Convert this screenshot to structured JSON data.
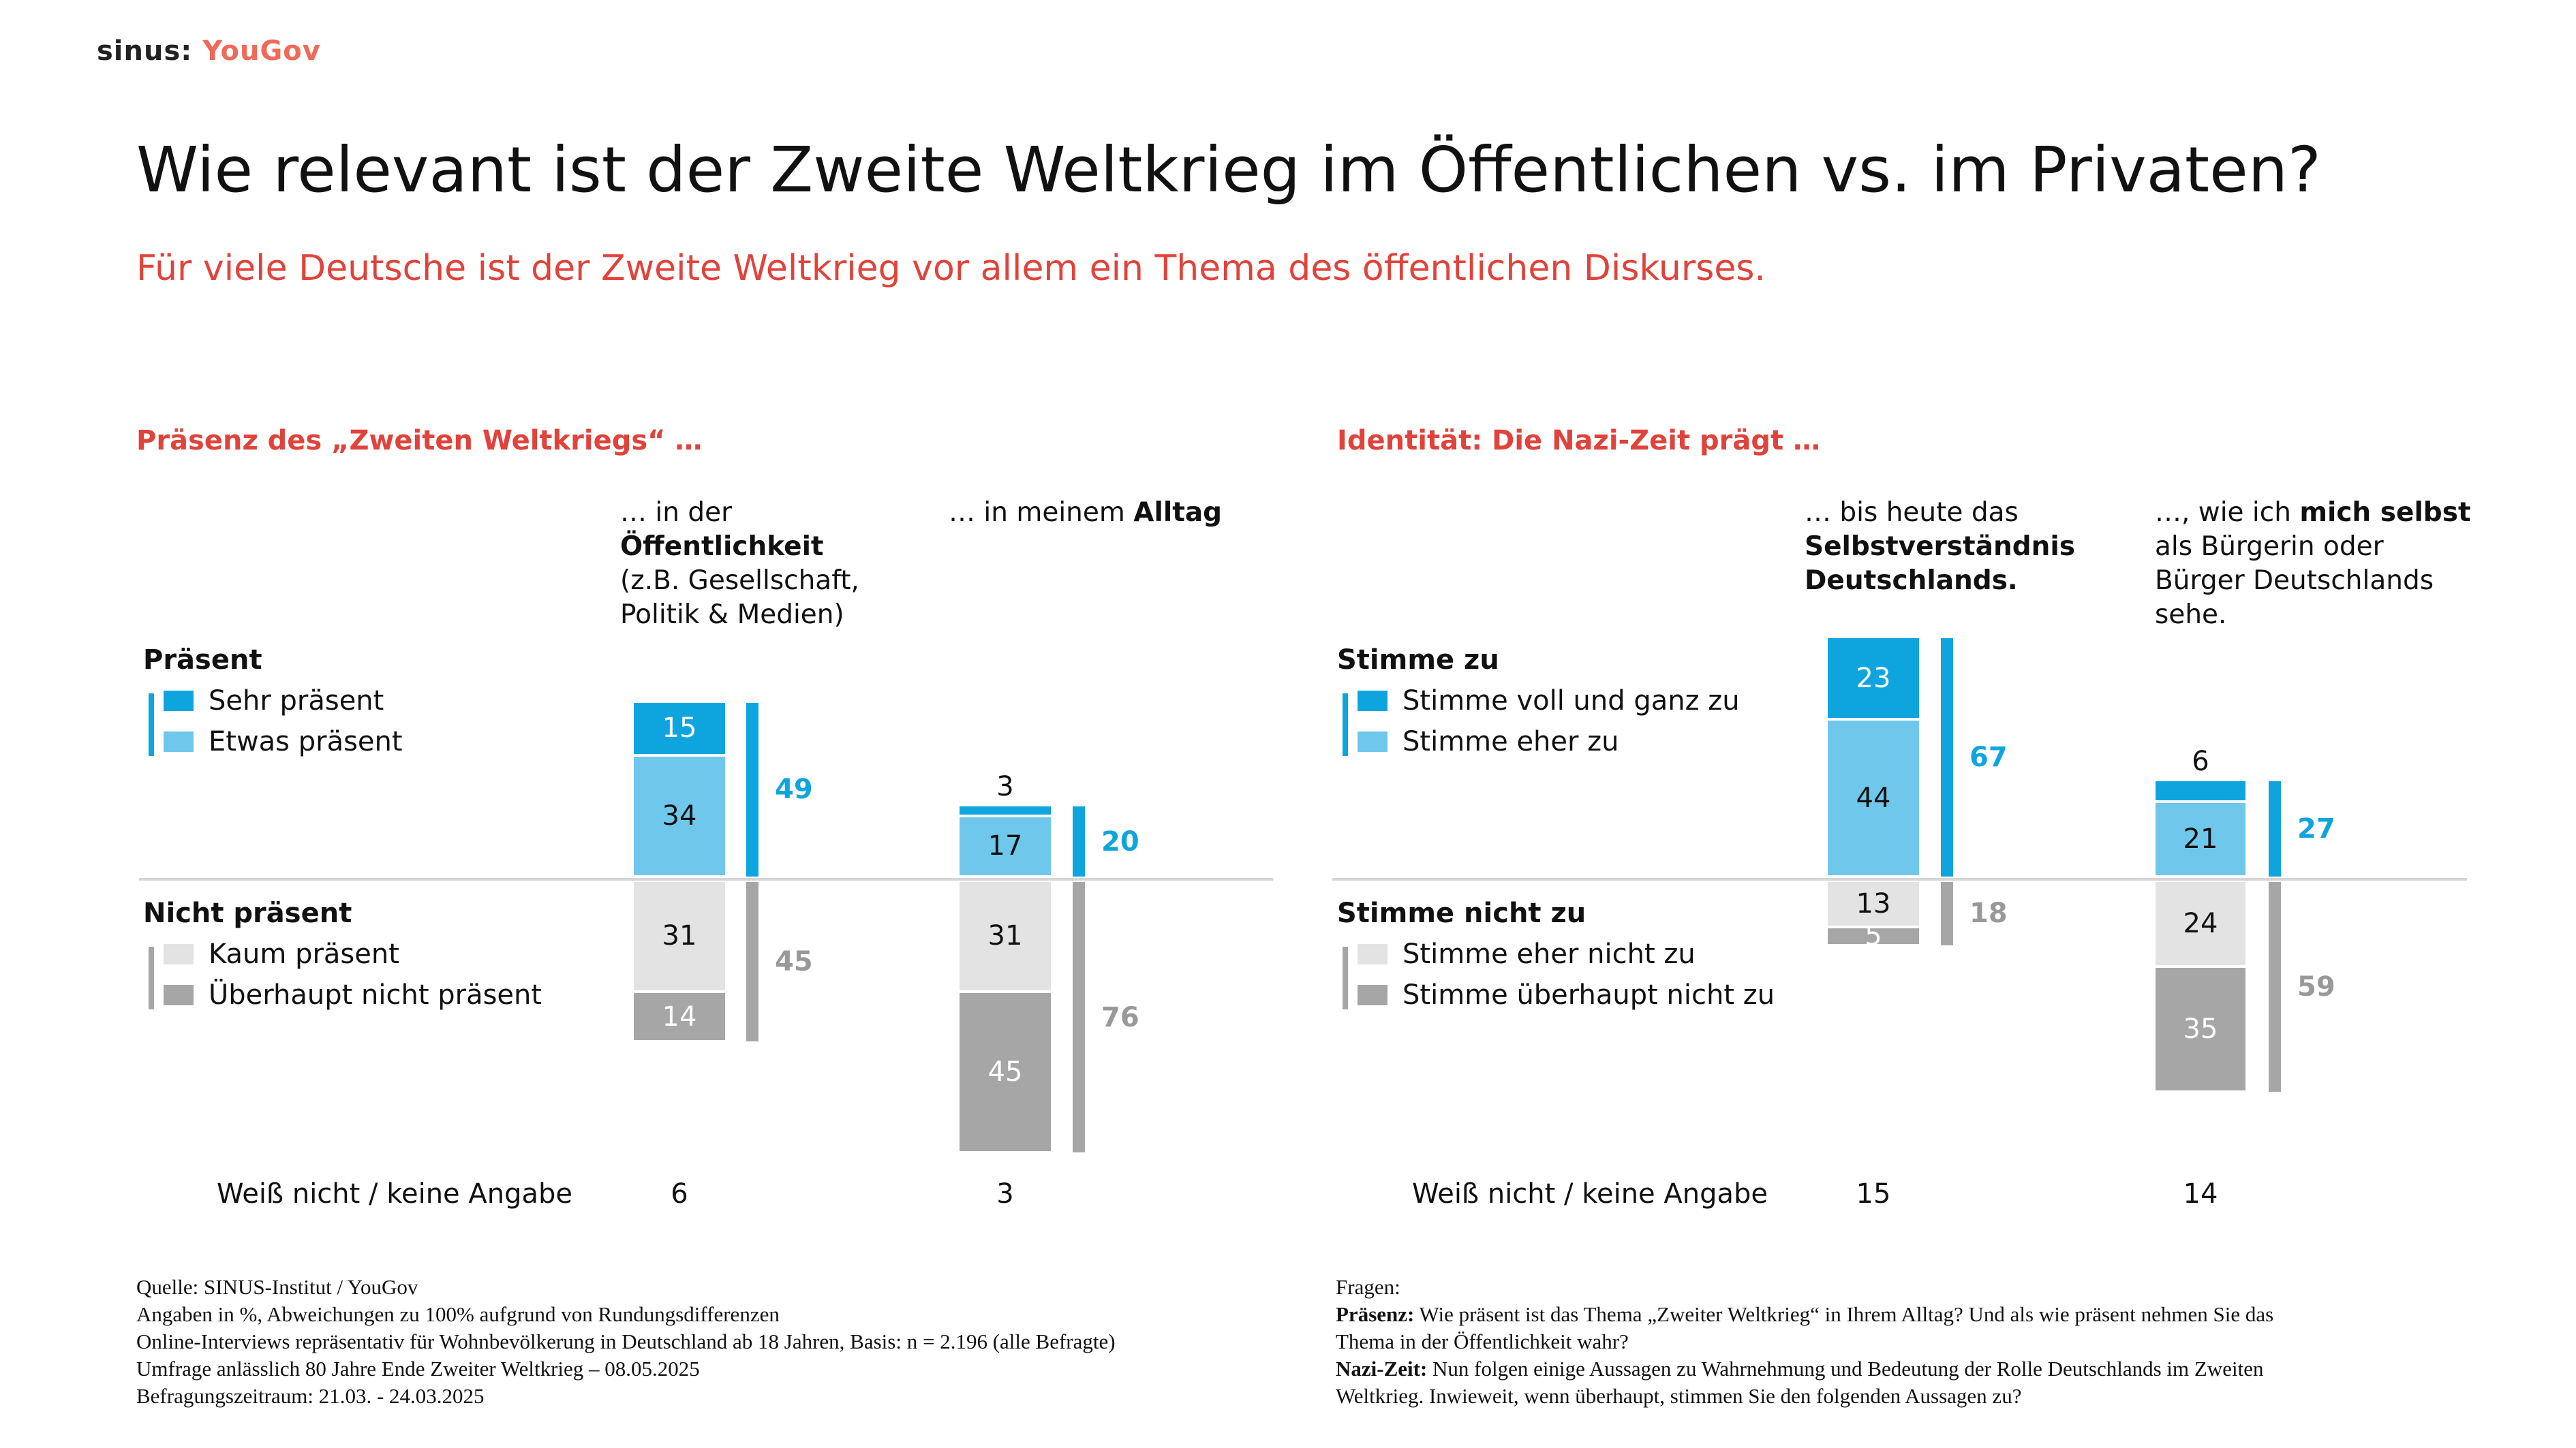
{
  "logo": {
    "sinus": "sinus:",
    "yougov": "YouGov"
  },
  "title": "Wie relevant ist der Zweite Weltkrieg im Öffentlichen vs. im Privaten?",
  "subtitle": "Für viele Deutsche ist der Zweite Weltkrieg vor allem ein Thema des öffentlichen Diskurses.",
  "colors": {
    "dark_blue": "#0ea5de",
    "light_blue": "#6fc8ec",
    "light_gray": "#e3e3e3",
    "dark_gray": "#a6a6a6",
    "accent_red": "#e0433b"
  },
  "left": {
    "section_title": "Präsenz des „Zweiten Weltkriegs“ …",
    "positive_group": "Präsent",
    "negative_group": "Nicht präsent",
    "legend": [
      "Sehr präsent",
      "Etwas präsent",
      "Kaum präsent",
      "Überhaupt nicht präsent"
    ],
    "dk_label": "Weiß nicht / keine Angabe",
    "columns": [
      {
        "head_lines": [
          [
            "… in der",
            ""
          ],
          [
            "",
            "Öffentlichkeit"
          ],
          [
            "(z.B. Gesellschaft,",
            ""
          ],
          [
            "Politik & Medien)",
            ""
          ]
        ]
      },
      {
        "head_lines": [
          [
            "… in meinem ",
            "Alltag"
          ]
        ]
      }
    ]
  },
  "right": {
    "section_title": "Identität: Die Nazi-Zeit prägt …",
    "positive_group": "Stimme zu",
    "negative_group": "Stimme nicht zu",
    "legend": [
      "Stimme voll und ganz zu",
      "Stimme eher zu",
      "Stimme eher nicht zu",
      "Stimme überhaupt nicht zu"
    ],
    "dk_label": "Weiß nicht / keine Angabe",
    "columns": [
      {
        "head_lines": [
          [
            "… bis heute das",
            ""
          ],
          [
            "",
            "Selbstverständnis"
          ],
          [
            "",
            "Deutschlands."
          ]
        ]
      },
      {
        "head_lines": [
          [
            "…, wie ich ",
            "mich selbst"
          ],
          [
            "als Bürgerin oder",
            ""
          ],
          [
            "Bürger Deutschlands",
            ""
          ],
          [
            "sehe.",
            ""
          ]
        ]
      }
    ]
  },
  "chart_data": [
    {
      "type": "bar",
      "stacked": "diverging",
      "title": "Präsenz des „Zweiten Weltkriegs“ …",
      "categories": [
        "… in der Öffentlichkeit (z.B. Gesellschaft, Politik & Medien)",
        "… in meinem Alltag"
      ],
      "series": [
        {
          "name": "Sehr präsent",
          "side": "positive",
          "values": [
            15,
            3
          ]
        },
        {
          "name": "Etwas präsent",
          "side": "positive",
          "values": [
            34,
            17
          ]
        },
        {
          "name": "Kaum präsent",
          "side": "negative",
          "values": [
            31,
            31
          ]
        },
        {
          "name": "Überhaupt nicht präsent",
          "side": "negative",
          "values": [
            14,
            45
          ]
        }
      ],
      "totals": {
        "Präsent": [
          49,
          20
        ],
        "Nicht präsent": [
          45,
          76
        ]
      },
      "dont_know": {
        "label": "Weiß nicht / keine Angabe",
        "values": [
          6,
          3
        ]
      },
      "unit": "%"
    },
    {
      "type": "bar",
      "stacked": "diverging",
      "title": "Identität: Die Nazi-Zeit prägt …",
      "categories": [
        "… bis heute das Selbstverständnis Deutschlands.",
        "…, wie ich mich selbst als Bürgerin oder Bürger Deutschlands sehe."
      ],
      "series": [
        {
          "name": "Stimme voll und ganz zu",
          "side": "positive",
          "values": [
            23,
            6
          ]
        },
        {
          "name": "Stimme eher zu",
          "side": "positive",
          "values": [
            44,
            21
          ]
        },
        {
          "name": "Stimme eher nicht zu",
          "side": "negative",
          "values": [
            13,
            24
          ]
        },
        {
          "name": "Stimme überhaupt nicht zu",
          "side": "negative",
          "values": [
            5,
            35
          ]
        }
      ],
      "totals": {
        "Stimme zu": [
          67,
          27
        ],
        "Stimme nicht zu": [
          18,
          59
        ]
      },
      "dont_know": {
        "label": "Weiß nicht / keine Angabe",
        "values": [
          15,
          14
        ]
      },
      "unit": "%"
    }
  ],
  "footer_left": [
    "Quelle: SINUS-Institut / YouGov",
    "Angaben in %, Abweichungen zu 100% aufgrund von Rundungsdifferenzen",
    "Online-Interviews repräsentativ für Wohnbevölkerung in Deutschland ab 18 Jahren, Basis: n = 2.196 (alle Befragte)",
    "Umfrage anlässlich 80 Jahre Ende Zweiter Weltkrieg – 08.05.2025",
    "Befragungszeitraum: 21.03. - 24.03.2025"
  ],
  "footer_right": {
    "heading": "Fragen:",
    "items": [
      {
        "bold": "Präsenz:",
        "text": " Wie präsent ist das Thema „Zweiter Weltkrieg“ in Ihrem Alltag? Und als wie präsent nehmen Sie das",
        "cont": "Thema in der Öffentlichkeit wahr?"
      },
      {
        "bold": "Nazi-Zeit:",
        "text": " Nun folgen einige Aussagen zu Wahrnehmung und Bedeutung der Rolle Deutschlands im Zweiten",
        "cont": "Weltkrieg. Inwieweit, wenn überhaupt, stimmen Sie den folgenden Aussagen zu?"
      }
    ]
  }
}
